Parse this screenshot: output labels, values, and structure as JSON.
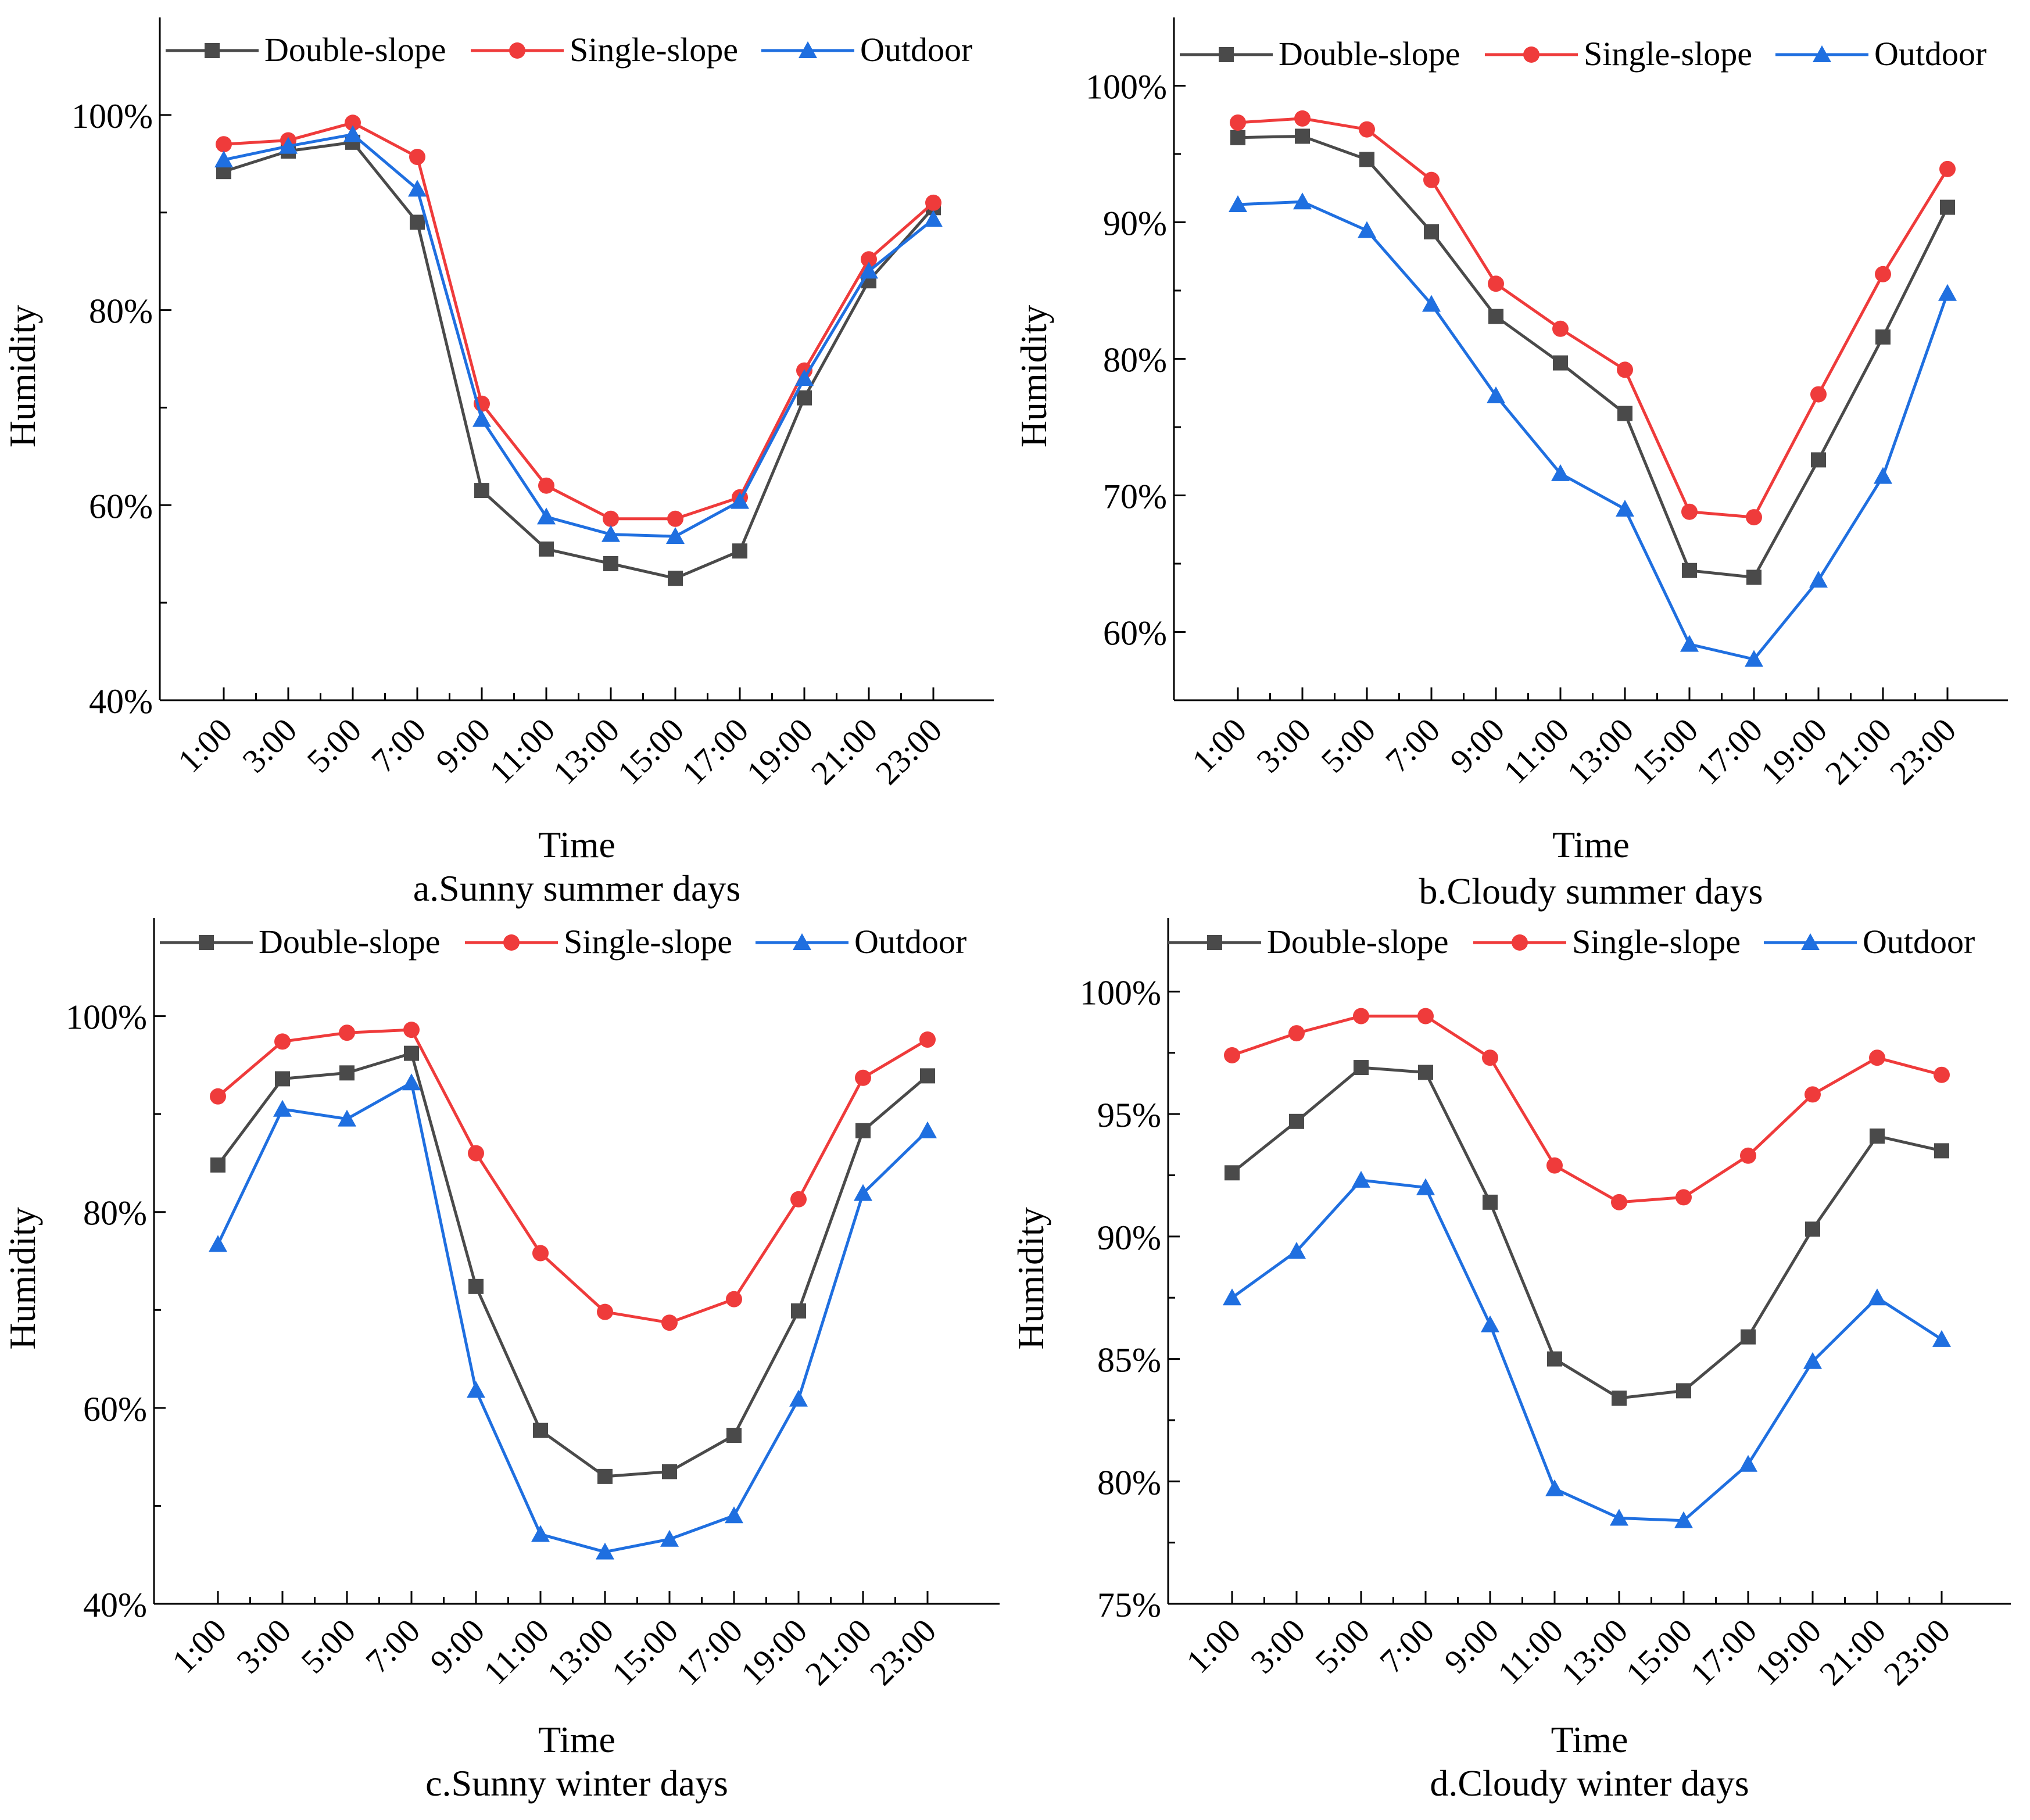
{
  "colors": {
    "double_slope": "#4a4a4a",
    "single_slope": "#ef3b3b",
    "outdoor": "#1f6fe0",
    "axis": "#000000"
  },
  "legend_labels": [
    "Double-slope",
    "Single-slope",
    "Outdoor"
  ],
  "chart_data": [
    {
      "type": "line",
      "title": "a.Sunny summer days",
      "xlabel": "Time",
      "ylabel": "Humidity",
      "categories": [
        "1:00",
        "3:00",
        "5:00",
        "7:00",
        "9:00",
        "11:00",
        "13:00",
        "15:00",
        "17:00",
        "19:00",
        "21:00",
        "23:00"
      ],
      "ylim": [
        40,
        110
      ],
      "yticks": [
        40,
        60,
        80,
        100
      ],
      "ytick_labels": [
        "40%",
        "60%",
        "80%",
        "100%"
      ],
      "legend": "top",
      "series": [
        {
          "name": "Double-slope",
          "marker": "square",
          "values": [
            94.2,
            96.3,
            97.2,
            89.0,
            61.5,
            55.5,
            54.0,
            52.5,
            55.3,
            71.0,
            83.0,
            90.5
          ]
        },
        {
          "name": "Single-slope",
          "marker": "circle",
          "values": [
            97.0,
            97.4,
            99.2,
            95.7,
            70.4,
            62.0,
            58.6,
            58.6,
            60.8,
            73.8,
            85.2,
            91.0
          ]
        },
        {
          "name": "Outdoor",
          "marker": "triangle",
          "values": [
            95.4,
            96.8,
            98.0,
            92.4,
            68.8,
            58.8,
            57.0,
            56.8,
            60.4,
            73.0,
            84.0,
            89.3
          ]
        }
      ]
    },
    {
      "type": "line",
      "title": "b.Cloudy summer days",
      "xlabel": "Time",
      "ylabel": "Humidity",
      "categories": [
        "1:00",
        "3:00",
        "5:00",
        "7:00",
        "9:00",
        "11:00",
        "13:00",
        "15:00",
        "17:00",
        "19:00",
        "21:00",
        "23:00"
      ],
      "ylim": [
        55,
        105
      ],
      "yticks": [
        60,
        70,
        80,
        90,
        100
      ],
      "ytick_labels": [
        "60%",
        "70%",
        "80%",
        "90%",
        "100%"
      ],
      "legend": "top",
      "series": [
        {
          "name": "Double-slope",
          "marker": "square",
          "values": [
            96.2,
            96.3,
            94.6,
            89.3,
            83.1,
            79.7,
            76.0,
            64.5,
            64.0,
            72.6,
            81.6,
            91.1
          ]
        },
        {
          "name": "Single-slope",
          "marker": "circle",
          "values": [
            97.3,
            97.6,
            96.8,
            93.1,
            85.5,
            82.2,
            79.2,
            68.8,
            68.4,
            77.4,
            86.2,
            93.9
          ]
        },
        {
          "name": "Outdoor",
          "marker": "triangle",
          "values": [
            91.3,
            91.5,
            89.4,
            84.0,
            77.3,
            71.6,
            69.0,
            59.1,
            58.0,
            63.8,
            71.4,
            84.8
          ]
        }
      ]
    },
    {
      "type": "line",
      "title": "c.Sunny winter days",
      "xlabel": "Time",
      "ylabel": "Humidity",
      "categories": [
        "1:00",
        "3:00",
        "5:00",
        "7:00",
        "9:00",
        "11:00",
        "13:00",
        "15:00",
        "17:00",
        "19:00",
        "21:00",
        "23:00"
      ],
      "ylim": [
        40,
        110
      ],
      "yticks": [
        40,
        60,
        80,
        100
      ],
      "ytick_labels": [
        "40%",
        "60%",
        "80%",
        "100%"
      ],
      "legend": "top",
      "series": [
        {
          "name": "Double-slope",
          "marker": "square",
          "values": [
            84.8,
            93.6,
            94.2,
            96.2,
            72.4,
            57.7,
            53.0,
            53.5,
            57.2,
            69.9,
            88.3,
            93.9
          ]
        },
        {
          "name": "Single-slope",
          "marker": "circle",
          "values": [
            91.8,
            97.4,
            98.3,
            98.6,
            86.0,
            75.8,
            69.8,
            68.7,
            71.1,
            81.3,
            93.7,
            97.6
          ]
        },
        {
          "name": "Outdoor",
          "marker": "triangle",
          "values": [
            76.7,
            90.5,
            89.5,
            93.2,
            61.8,
            47.1,
            45.3,
            46.6,
            49.0,
            60.9,
            81.9,
            88.3
          ]
        }
      ]
    },
    {
      "type": "line",
      "title": "d.Cloudy winter days",
      "xlabel": "Time",
      "ylabel": "Humidity",
      "categories": [
        "1:00",
        "3:00",
        "5:00",
        "7:00",
        "9:00",
        "11:00",
        "13:00",
        "15:00",
        "17:00",
        "19:00",
        "21:00",
        "23:00"
      ],
      "ylim": [
        75,
        103
      ],
      "yticks": [
        75,
        80,
        85,
        90,
        95,
        100
      ],
      "ytick_labels": [
        "75%",
        "80%",
        "85%",
        "90%",
        "95%",
        "100%"
      ],
      "legend": "top",
      "series": [
        {
          "name": "Double-slope",
          "marker": "square",
          "values": [
            92.6,
            94.7,
            96.9,
            96.7,
            91.4,
            85.0,
            83.4,
            83.7,
            85.9,
            90.3,
            94.1,
            93.5
          ]
        },
        {
          "name": "Single-slope",
          "marker": "circle",
          "values": [
            97.4,
            98.3,
            99.0,
            99.0,
            97.3,
            92.9,
            91.4,
            91.6,
            93.3,
            95.8,
            97.3,
            96.6
          ]
        },
        {
          "name": "Outdoor",
          "marker": "triangle",
          "values": [
            87.5,
            89.4,
            92.3,
            92.0,
            86.4,
            79.7,
            78.5,
            78.4,
            80.7,
            84.9,
            87.5,
            85.8
          ]
        }
      ]
    }
  ]
}
